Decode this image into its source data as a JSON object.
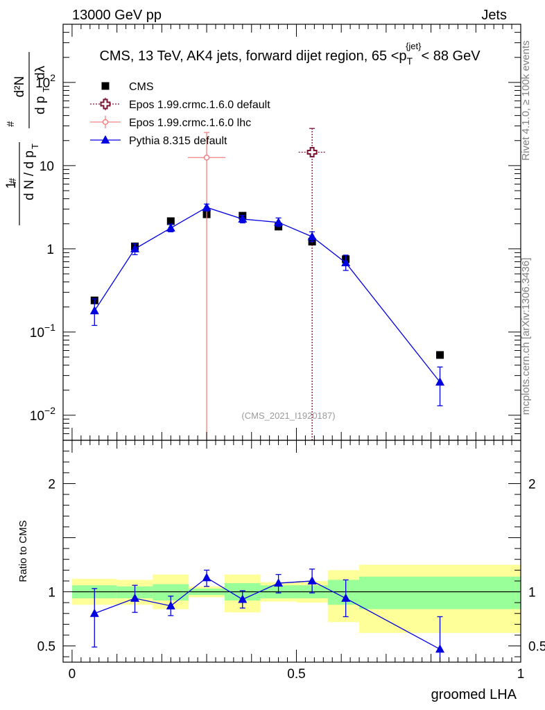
{
  "header": {
    "energy_label": "13000 GeV pp",
    "category_label": "Jets"
  },
  "side_labels": {
    "rivet": "Rivet 4.1.0, ≥ 100k events",
    "mcplots": "mcplots.cern.ch [arXiv:1306.3436]"
  },
  "colors": {
    "cms": "#000000",
    "epos_default": "#7a1230",
    "epos_lhc": "#f08080",
    "pythia": "#0000e0",
    "band_inner": "#99ff99",
    "band_outer": "#ffff99"
  },
  "chart_data": [
    {
      "type": "line",
      "title": "CMS, 13 TeV, AK4 jets, forward dijet region, 65 <p_T^{jet}< 88 GeV",
      "title_parts": {
        "main": "CMS, 13 TeV, AK4 jets, forward dijet region, 65 <p",
        "sub": "T",
        "sup": "{jet}",
        "tail": "< 88 GeV"
      },
      "ylabel": "1/dN/dp_T d²N/dp_T dλ",
      "ylabel_parts": {
        "hash": "#",
        "one": "1",
        "dn": "d N / d p",
        "t": "T",
        "d2n": "d²N",
        "dpt": "d p",
        "dl": "dλ"
      },
      "yscale": "log",
      "ylim": [
        0.005,
        500
      ],
      "xlim": [
        -0.02,
        1.0
      ],
      "yticks": [
        {
          "value": 0.01,
          "base": "10",
          "exp": "−2"
        },
        {
          "value": 0.1,
          "base": "10",
          "exp": "−1"
        },
        {
          "value": 1,
          "base": "1",
          "exp": ""
        },
        {
          "value": 10,
          "base": "10",
          "exp": ""
        },
        {
          "value": 100,
          "base": "10",
          "exp": "2"
        }
      ],
      "watermark": "(CMS_2021_I1920187)",
      "legend": {
        "position": "top-left",
        "entries": [
          {
            "key": "cms",
            "label": "CMS"
          },
          {
            "key": "epos_default",
            "label": "Epos 1.99.crmc.1.6.0 default"
          },
          {
            "key": "epos_lhc",
            "label": "Epos 1.99.crmc.1.6.0 lhc"
          },
          {
            "key": "pythia",
            "label": "Pythia 8.315 default"
          }
        ]
      },
      "series": [
        {
          "name": "CMS",
          "key": "cms",
          "marker": "square",
          "x": [
            0.05,
            0.14,
            0.22,
            0.3,
            0.38,
            0.46,
            0.535,
            0.61,
            0.82
          ],
          "y": [
            0.24,
            1.07,
            2.15,
            2.6,
            2.5,
            1.85,
            1.22,
            0.75,
            0.053
          ]
        },
        {
          "name": "Epos 1.99.crmc.1.6.0 default",
          "key": "epos_default",
          "marker": "open-cross",
          "x": [
            0.535
          ],
          "y": [
            14.5
          ],
          "yerr_low": [
            0.005
          ],
          "yerr_high": [
            28
          ],
          "xerr": [
            0.03
          ]
        },
        {
          "name": "Epos 1.99.crmc.1.6.0 lhc",
          "key": "epos_lhc",
          "marker": "open-circle",
          "x": [
            0.3
          ],
          "y": [
            12.5
          ],
          "yerr_low": [
            0.005
          ],
          "yerr_high": [
            25
          ],
          "xerr": [
            0.042
          ]
        },
        {
          "name": "Pythia 8.315 default",
          "key": "pythia",
          "marker": "triangle",
          "x": [
            0.05,
            0.14,
            0.22,
            0.3,
            0.38,
            0.46,
            0.535,
            0.61,
            0.82
          ],
          "y": [
            0.18,
            1.0,
            1.78,
            3.15,
            2.28,
            2.08,
            1.4,
            0.68,
            0.025
          ],
          "yerr_low": [
            0.12,
            0.85,
            1.6,
            2.85,
            2.05,
            1.85,
            1.22,
            0.55,
            0.013
          ],
          "yerr_high": [
            0.25,
            1.15,
            1.98,
            3.45,
            2.52,
            2.35,
            1.6,
            0.84,
            0.038
          ]
        }
      ]
    },
    {
      "type": "line",
      "title": "",
      "ylabel": "Ratio to CMS",
      "xlabel": "groomed LHA",
      "xlim": [
        -0.02,
        1.0
      ],
      "ylim": [
        0.35,
        2.4
      ],
      "xticks": [
        {
          "value": 0,
          "label": "0"
        },
        {
          "value": 0.5,
          "label": "0.5"
        },
        {
          "value": 1,
          "label": "1"
        }
      ],
      "yticks": [
        {
          "value": 0.5,
          "label": "0.5"
        },
        {
          "value": 1,
          "label": "1"
        },
        {
          "value": 2,
          "label": "2"
        }
      ],
      "bands": [
        {
          "x0": 0.0,
          "x1": 0.1,
          "inner": [
            0.94,
            1.06
          ],
          "outer": [
            0.88,
            1.12
          ]
        },
        {
          "x0": 0.1,
          "x1": 0.18,
          "inner": [
            0.94,
            1.05
          ],
          "outer": [
            0.88,
            1.11
          ]
        },
        {
          "x0": 0.18,
          "x1": 0.26,
          "inner": [
            0.92,
            1.07
          ],
          "outer": [
            0.84,
            1.16
          ]
        },
        {
          "x0": 0.26,
          "x1": 0.34,
          "inner": [
            0.97,
            1.03
          ],
          "outer": [
            0.95,
            1.05
          ]
        },
        {
          "x0": 0.34,
          "x1": 0.42,
          "inner": [
            0.92,
            1.08
          ],
          "outer": [
            0.81,
            1.16
          ]
        },
        {
          "x0": 0.42,
          "x1": 0.5,
          "inner": [
            0.94,
            1.06
          ],
          "outer": [
            0.91,
            1.09
          ]
        },
        {
          "x0": 0.5,
          "x1": 0.57,
          "inner": [
            0.94,
            1.06
          ],
          "outer": [
            0.9,
            1.1
          ]
        },
        {
          "x0": 0.57,
          "x1": 0.64,
          "inner": [
            0.88,
            1.11
          ],
          "outer": [
            0.72,
            1.2
          ]
        },
        {
          "x0": 0.64,
          "x1": 1.0,
          "inner": [
            0.84,
            1.14
          ],
          "outer": [
            0.62,
            1.25
          ]
        }
      ],
      "series": [
        {
          "name": "Pythia 8.315 default",
          "key": "pythia",
          "marker": "triangle",
          "x": [
            0.05,
            0.14,
            0.22,
            0.3,
            0.38,
            0.46,
            0.535,
            0.61,
            0.82
          ],
          "y": [
            0.8,
            0.94,
            0.87,
            1.13,
            0.93,
            1.08,
            1.1,
            0.94,
            0.47
          ],
          "yerr_low": [
            0.49,
            0.81,
            0.78,
            1.05,
            0.85,
            0.99,
            0.99,
            0.77,
            0.35
          ],
          "yerr_high": [
            1.03,
            1.06,
            0.96,
            1.2,
            1.01,
            1.16,
            1.21,
            1.11,
            0.77
          ]
        }
      ]
    }
  ]
}
